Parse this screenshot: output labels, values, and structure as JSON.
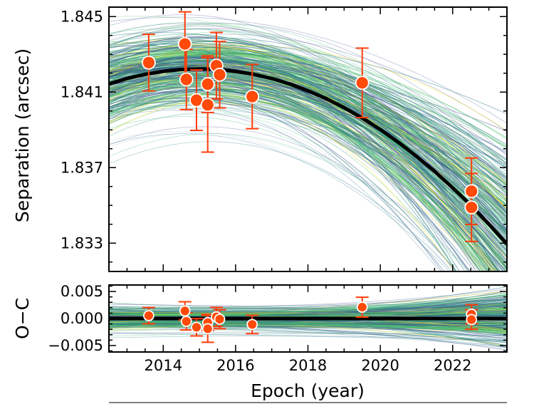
{
  "chart_data": [
    {
      "panel": "top",
      "type": "scatter",
      "xlabel": "",
      "ylabel": "Separation (arcsec)",
      "xlim": [
        2012.5,
        2023.5
      ],
      "ylim": [
        1.8315,
        1.8455
      ],
      "xticks": [
        2014,
        2016,
        2018,
        2020,
        2022
      ],
      "yticks": [
        1.833,
        1.837,
        1.841,
        1.845
      ],
      "ytick_labels": [
        "1.833",
        "1.837",
        "1.841",
        "1.845"
      ],
      "grid": false,
      "observations": {
        "x": [
          2013.6,
          2014.6,
          2014.64,
          2014.92,
          2015.23,
          2015.23,
          2015.47,
          2015.56,
          2016.46,
          2019.5,
          2022.52,
          2022.52
        ],
        "y": [
          1.84256,
          1.84355,
          1.84167,
          1.84057,
          1.84142,
          1.84032,
          1.8424,
          1.84192,
          1.84076,
          1.84149,
          1.83575,
          1.83489
        ],
        "yerr": [
          0.0015,
          0.0017,
          0.0016,
          0.0016,
          0.0015,
          0.0025,
          0.00176,
          0.00176,
          0.0017,
          0.00184,
          0.00176,
          0.0018
        ]
      },
      "best_fit_model": {
        "x": [
          2012.5,
          2013,
          2013.5,
          2014,
          2014.5,
          2015,
          2015.5,
          2016,
          2016.5,
          2017,
          2017.5,
          2018,
          2018.5,
          2019,
          2019.5,
          2020,
          2020.5,
          2021,
          2021.5,
          2022,
          2022.5,
          2023,
          2023.5
        ],
        "y": [
          1.84143,
          1.84172,
          1.84194,
          1.8421,
          1.8422,
          1.84223,
          1.8422,
          1.8421,
          1.84194,
          1.84172,
          1.84143,
          1.84107,
          1.84066,
          1.84017,
          1.83963,
          1.83902,
          1.83834,
          1.8376,
          1.8368,
          1.83593,
          1.835,
          1.83401,
          1.83295
        ]
      }
    },
    {
      "panel": "bottom",
      "type": "scatter",
      "xlabel": "Epoch (year)",
      "ylabel": "O−C",
      "xlim": [
        2012.5,
        2023.5
      ],
      "ylim": [
        -0.0062,
        0.0062
      ],
      "xticks": [
        2014,
        2016,
        2018,
        2020,
        2022
      ],
      "xtick_labels": [
        "2014",
        "2016",
        "2018",
        "2020",
        "2022"
      ],
      "yticks": [
        -0.005,
        0.0,
        0.005
      ],
      "ytick_labels": [
        "−0.005",
        "0.000",
        "0.005"
      ],
      "grid": false,
      "residuals": {
        "x": [
          2013.6,
          2014.6,
          2014.64,
          2014.92,
          2015.23,
          2015.23,
          2015.47,
          2015.56,
          2016.46,
          2019.5,
          2022.52,
          2022.52
        ],
        "y": [
          0.00053,
          0.0014,
          -0.00053,
          -0.00163,
          -0.00075,
          -0.0019,
          0.0003,
          -0.00013,
          -0.0011,
          0.0021,
          0.0008,
          -0.0002
        ],
        "yerr": [
          0.0015,
          0.0017,
          0.0016,
          0.0016,
          0.0015,
          0.0025,
          0.00176,
          0.00176,
          0.0017,
          0.00184,
          0.00176,
          0.0018
        ]
      },
      "zero_line": 0.0
    }
  ],
  "colors": {
    "points": "#ff4a0a",
    "errorbars": "#ff3d0a",
    "marker_edge": "#ffffff",
    "model": "#000000",
    "posterior_draws": [
      "#21918c",
      "#2a788e",
      "#3b528b",
      "#5ec962",
      "#35b779",
      "#a8bccb",
      "#fde725",
      "#414487"
    ]
  }
}
